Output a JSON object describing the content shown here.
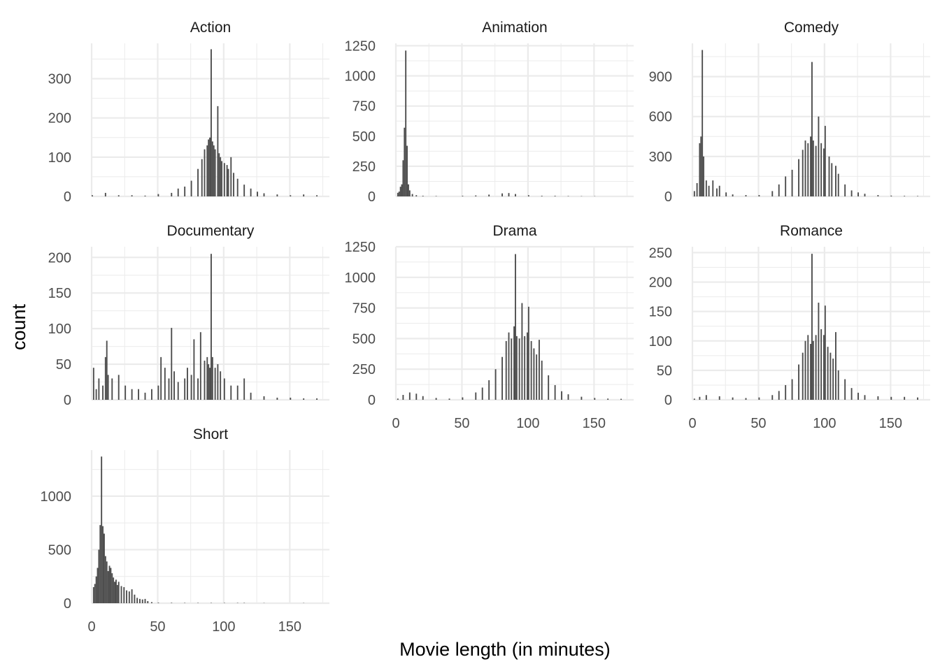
{
  "chart_data": {
    "type": "bar",
    "xlabel": "Movie length (in minutes)",
    "ylabel": "count",
    "xlim": [
      0,
      180
    ],
    "x_ticks": [
      "0",
      "50",
      "100",
      "150"
    ],
    "bar_color": "#4d4d4d",
    "grid_color": "#ebebeb",
    "facets": [
      {
        "name": "Action",
        "ylim": [
          0,
          390
        ],
        "y_ticks": [
          0,
          100,
          200,
          300
        ],
        "y_tick_labels": [
          "0",
          "100",
          "200",
          "300"
        ],
        "bins": [
          [
            0,
            3
          ],
          [
            10,
            9
          ],
          [
            20,
            3
          ],
          [
            30,
            3
          ],
          [
            40,
            2
          ],
          [
            50,
            6
          ],
          [
            60,
            9
          ],
          [
            65,
            20
          ],
          [
            70,
            25
          ],
          [
            75,
            40
          ],
          [
            80,
            70
          ],
          [
            83,
            95
          ],
          [
            85,
            120
          ],
          [
            87,
            130
          ],
          [
            88,
            145
          ],
          [
            89,
            150
          ],
          [
            90,
            375
          ],
          [
            91,
            140
          ],
          [
            92,
            130
          ],
          [
            93,
            120
          ],
          [
            95,
            230
          ],
          [
            96,
            110
          ],
          [
            97,
            100
          ],
          [
            98,
            90
          ],
          [
            100,
            85
          ],
          [
            102,
            80
          ],
          [
            103,
            70
          ],
          [
            105,
            100
          ],
          [
            107,
            60
          ],
          [
            110,
            45
          ],
          [
            115,
            30
          ],
          [
            120,
            20
          ],
          [
            125,
            12
          ],
          [
            130,
            8
          ],
          [
            140,
            5
          ],
          [
            150,
            3
          ],
          [
            160,
            5
          ],
          [
            170,
            3
          ]
        ]
      },
      {
        "name": "Animation",
        "ylim": [
          0,
          1270
        ],
        "y_ticks": [
          0,
          250,
          500,
          750,
          1000,
          1250
        ],
        "y_tick_labels": [
          "0",
          "250",
          "500",
          "750",
          "1000",
          "1250"
        ],
        "bins": [
          [
            1,
            30
          ],
          [
            2,
            40
          ],
          [
            3,
            80
          ],
          [
            4,
            100
          ],
          [
            5,
            300
          ],
          [
            6,
            570
          ],
          [
            7,
            1210
          ],
          [
            8,
            420
          ],
          [
            9,
            100
          ],
          [
            10,
            50
          ],
          [
            12,
            20
          ],
          [
            15,
            10
          ],
          [
            20,
            5
          ],
          [
            30,
            3
          ],
          [
            50,
            5
          ],
          [
            60,
            8
          ],
          [
            70,
            15
          ],
          [
            80,
            25
          ],
          [
            85,
            28
          ],
          [
            90,
            20
          ],
          [
            100,
            10
          ],
          [
            110,
            5
          ],
          [
            120,
            5
          ],
          [
            130,
            3
          ],
          [
            140,
            2
          ],
          [
            150,
            2
          ]
        ]
      },
      {
        "name": "Comedy",
        "ylim": [
          0,
          1150
        ],
        "y_ticks": [
          0,
          300,
          600,
          900
        ],
        "y_tick_labels": [
          "0",
          "300",
          "600",
          "900"
        ],
        "bins": [
          [
            1,
            40
          ],
          [
            3,
            100
          ],
          [
            5,
            400
          ],
          [
            6,
            450
          ],
          [
            7,
            1100
          ],
          [
            8,
            300
          ],
          [
            10,
            120
          ],
          [
            12,
            80
          ],
          [
            15,
            120
          ],
          [
            18,
            60
          ],
          [
            20,
            80
          ],
          [
            25,
            30
          ],
          [
            30,
            15
          ],
          [
            40,
            10
          ],
          [
            50,
            10
          ],
          [
            60,
            40
          ],
          [
            65,
            90
          ],
          [
            70,
            150
          ],
          [
            75,
            200
          ],
          [
            80,
            280
          ],
          [
            83,
            350
          ],
          [
            85,
            420
          ],
          [
            87,
            400
          ],
          [
            89,
            450
          ],
          [
            90,
            1010
          ],
          [
            91,
            420
          ],
          [
            93,
            380
          ],
          [
            95,
            600
          ],
          [
            97,
            400
          ],
          [
            99,
            360
          ],
          [
            100,
            530
          ],
          [
            103,
            300
          ],
          [
            105,
            250
          ],
          [
            108,
            230
          ],
          [
            110,
            170
          ],
          [
            115,
            90
          ],
          [
            120,
            45
          ],
          [
            125,
            30
          ],
          [
            130,
            20
          ],
          [
            140,
            10
          ],
          [
            150,
            6
          ],
          [
            160,
            4
          ],
          [
            170,
            3
          ]
        ]
      },
      {
        "name": "Documentary",
        "ylim": [
          0,
          215
        ],
        "y_ticks": [
          0,
          50,
          100,
          150,
          200
        ],
        "y_tick_labels": [
          "0",
          "50",
          "100",
          "150",
          "200"
        ],
        "bins": [
          [
            1,
            45
          ],
          [
            3,
            15
          ],
          [
            5,
            30
          ],
          [
            8,
            20
          ],
          [
            10,
            60
          ],
          [
            11,
            83
          ],
          [
            12,
            35
          ],
          [
            15,
            30
          ],
          [
            20,
            35
          ],
          [
            25,
            20
          ],
          [
            30,
            15
          ],
          [
            35,
            15
          ],
          [
            40,
            10
          ],
          [
            45,
            15
          ],
          [
            50,
            20
          ],
          [
            52,
            60
          ],
          [
            55,
            45
          ],
          [
            58,
            30
          ],
          [
            60,
            101
          ],
          [
            62,
            40
          ],
          [
            65,
            25
          ],
          [
            70,
            30
          ],
          [
            72,
            45
          ],
          [
            75,
            35
          ],
          [
            77,
            85
          ],
          [
            80,
            30
          ],
          [
            82,
            95
          ],
          [
            85,
            55
          ],
          [
            87,
            60
          ],
          [
            88,
            50
          ],
          [
            89,
            45
          ],
          [
            90,
            205
          ],
          [
            91,
            60
          ],
          [
            93,
            45
          ],
          [
            95,
            50
          ],
          [
            97,
            40
          ],
          [
            100,
            30
          ],
          [
            105,
            20
          ],
          [
            110,
            20
          ],
          [
            115,
            30
          ],
          [
            120,
            10
          ],
          [
            130,
            5
          ],
          [
            140,
            3
          ],
          [
            150,
            3
          ],
          [
            160,
            2
          ],
          [
            170,
            2
          ]
        ]
      },
      {
        "name": "Drama",
        "ylim": [
          0,
          1250
        ],
        "y_ticks": [
          0,
          250,
          500,
          750,
          1000,
          1250
        ],
        "y_tick_labels": [
          "0",
          "250",
          "500",
          "750",
          "1000",
          "1250"
        ],
        "bins": [
          [
            1,
            10
          ],
          [
            5,
            40
          ],
          [
            10,
            60
          ],
          [
            15,
            50
          ],
          [
            20,
            30
          ],
          [
            30,
            15
          ],
          [
            40,
            10
          ],
          [
            50,
            20
          ],
          [
            60,
            60
          ],
          [
            65,
            100
          ],
          [
            70,
            160
          ],
          [
            75,
            250
          ],
          [
            80,
            350
          ],
          [
            83,
            480
          ],
          [
            85,
            550
          ],
          [
            87,
            500
          ],
          [
            89,
            600
          ],
          [
            90,
            1190
          ],
          [
            91,
            520
          ],
          [
            93,
            500
          ],
          [
            95,
            790
          ],
          [
            97,
            520
          ],
          [
            99,
            550
          ],
          [
            100,
            760
          ],
          [
            102,
            480
          ],
          [
            104,
            420
          ],
          [
            106,
            370
          ],
          [
            108,
            490
          ],
          [
            110,
            320
          ],
          [
            115,
            200
          ],
          [
            120,
            120
          ],
          [
            125,
            70
          ],
          [
            130,
            45
          ],
          [
            140,
            25
          ],
          [
            150,
            15
          ],
          [
            160,
            10
          ],
          [
            170,
            8
          ]
        ]
      },
      {
        "name": "Romance",
        "ylim": [
          0,
          260
        ],
        "y_ticks": [
          0,
          50,
          100,
          150,
          200,
          250
        ],
        "y_tick_labels": [
          "0",
          "50",
          "100",
          "150",
          "200",
          "250"
        ],
        "bins": [
          [
            1,
            2
          ],
          [
            5,
            5
          ],
          [
            10,
            8
          ],
          [
            20,
            6
          ],
          [
            30,
            4
          ],
          [
            40,
            3
          ],
          [
            50,
            4
          ],
          [
            60,
            8
          ],
          [
            65,
            15
          ],
          [
            70,
            25
          ],
          [
            75,
            35
          ],
          [
            80,
            60
          ],
          [
            83,
            80
          ],
          [
            85,
            100
          ],
          [
            87,
            110
          ],
          [
            89,
            95
          ],
          [
            90,
            248
          ],
          [
            91,
            100
          ],
          [
            93,
            110
          ],
          [
            95,
            165
          ],
          [
            97,
            120
          ],
          [
            99,
            110
          ],
          [
            100,
            160
          ],
          [
            102,
            90
          ],
          [
            104,
            80
          ],
          [
            106,
            70
          ],
          [
            108,
            115
          ],
          [
            110,
            50
          ],
          [
            115,
            35
          ],
          [
            120,
            20
          ],
          [
            125,
            12
          ],
          [
            130,
            8
          ],
          [
            140,
            6
          ],
          [
            150,
            5
          ],
          [
            160,
            5
          ],
          [
            170,
            4
          ]
        ]
      },
      {
        "name": "Short",
        "ylim": [
          0,
          1430
        ],
        "y_ticks": [
          0,
          500,
          1000
        ],
        "y_tick_labels": [
          "0",
          "500",
          "1000"
        ],
        "bins": [
          [
            1,
            150
          ],
          [
            2,
            180
          ],
          [
            3,
            250
          ],
          [
            4,
            330
          ],
          [
            5,
            500
          ],
          [
            6,
            730
          ],
          [
            7,
            1370
          ],
          [
            8,
            720
          ],
          [
            9,
            650
          ],
          [
            10,
            440
          ],
          [
            11,
            390
          ],
          [
            12,
            300
          ],
          [
            13,
            350
          ],
          [
            14,
            330
          ],
          [
            15,
            280
          ],
          [
            16,
            240
          ],
          [
            17,
            200
          ],
          [
            18,
            220
          ],
          [
            19,
            170
          ],
          [
            20,
            200
          ],
          [
            22,
            160
          ],
          [
            24,
            150
          ],
          [
            26,
            120
          ],
          [
            28,
            110
          ],
          [
            30,
            130
          ],
          [
            32,
            80
          ],
          [
            34,
            50
          ],
          [
            36,
            40
          ],
          [
            38,
            35
          ],
          [
            40,
            40
          ],
          [
            42,
            20
          ],
          [
            45,
            10
          ],
          [
            50,
            5
          ],
          [
            60,
            4
          ],
          [
            70,
            3
          ],
          [
            80,
            3
          ],
          [
            90,
            3
          ],
          [
            100,
            3
          ],
          [
            110,
            3
          ],
          [
            115,
            3
          ],
          [
            130,
            2
          ],
          [
            160,
            2
          ]
        ]
      }
    ]
  }
}
